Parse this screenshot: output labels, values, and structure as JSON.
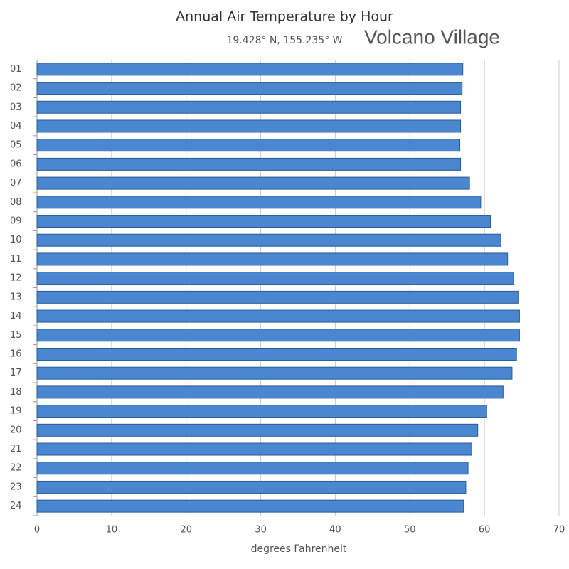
{
  "chart_data": {
    "type": "bar",
    "orientation": "horizontal",
    "title": "Annual Air Temperature by Hour",
    "subtitle": "19.428° N, 155.235° W",
    "location": "Volcano Village",
    "x_label": "degrees Fahrenheit",
    "categories": [
      "01",
      "02",
      "03",
      "04",
      "05",
      "06",
      "07",
      "08",
      "09",
      "10",
      "11",
      "12",
      "13",
      "14",
      "15",
      "16",
      "17",
      "18",
      "19",
      "20",
      "21",
      "22",
      "23",
      "24"
    ],
    "values": [
      57.1,
      57.0,
      56.8,
      56.8,
      56.7,
      56.8,
      58.0,
      59.5,
      60.8,
      62.2,
      63.1,
      63.9,
      64.5,
      64.7,
      64.7,
      64.3,
      63.7,
      62.5,
      60.3,
      59.1,
      58.3,
      57.8,
      57.5,
      57.2
    ],
    "color": "#4a87d0",
    "xlim": [
      0,
      70
    ],
    "xticks": [
      0,
      10,
      20,
      30,
      40,
      50,
      60,
      70
    ],
    "grid": true
  }
}
